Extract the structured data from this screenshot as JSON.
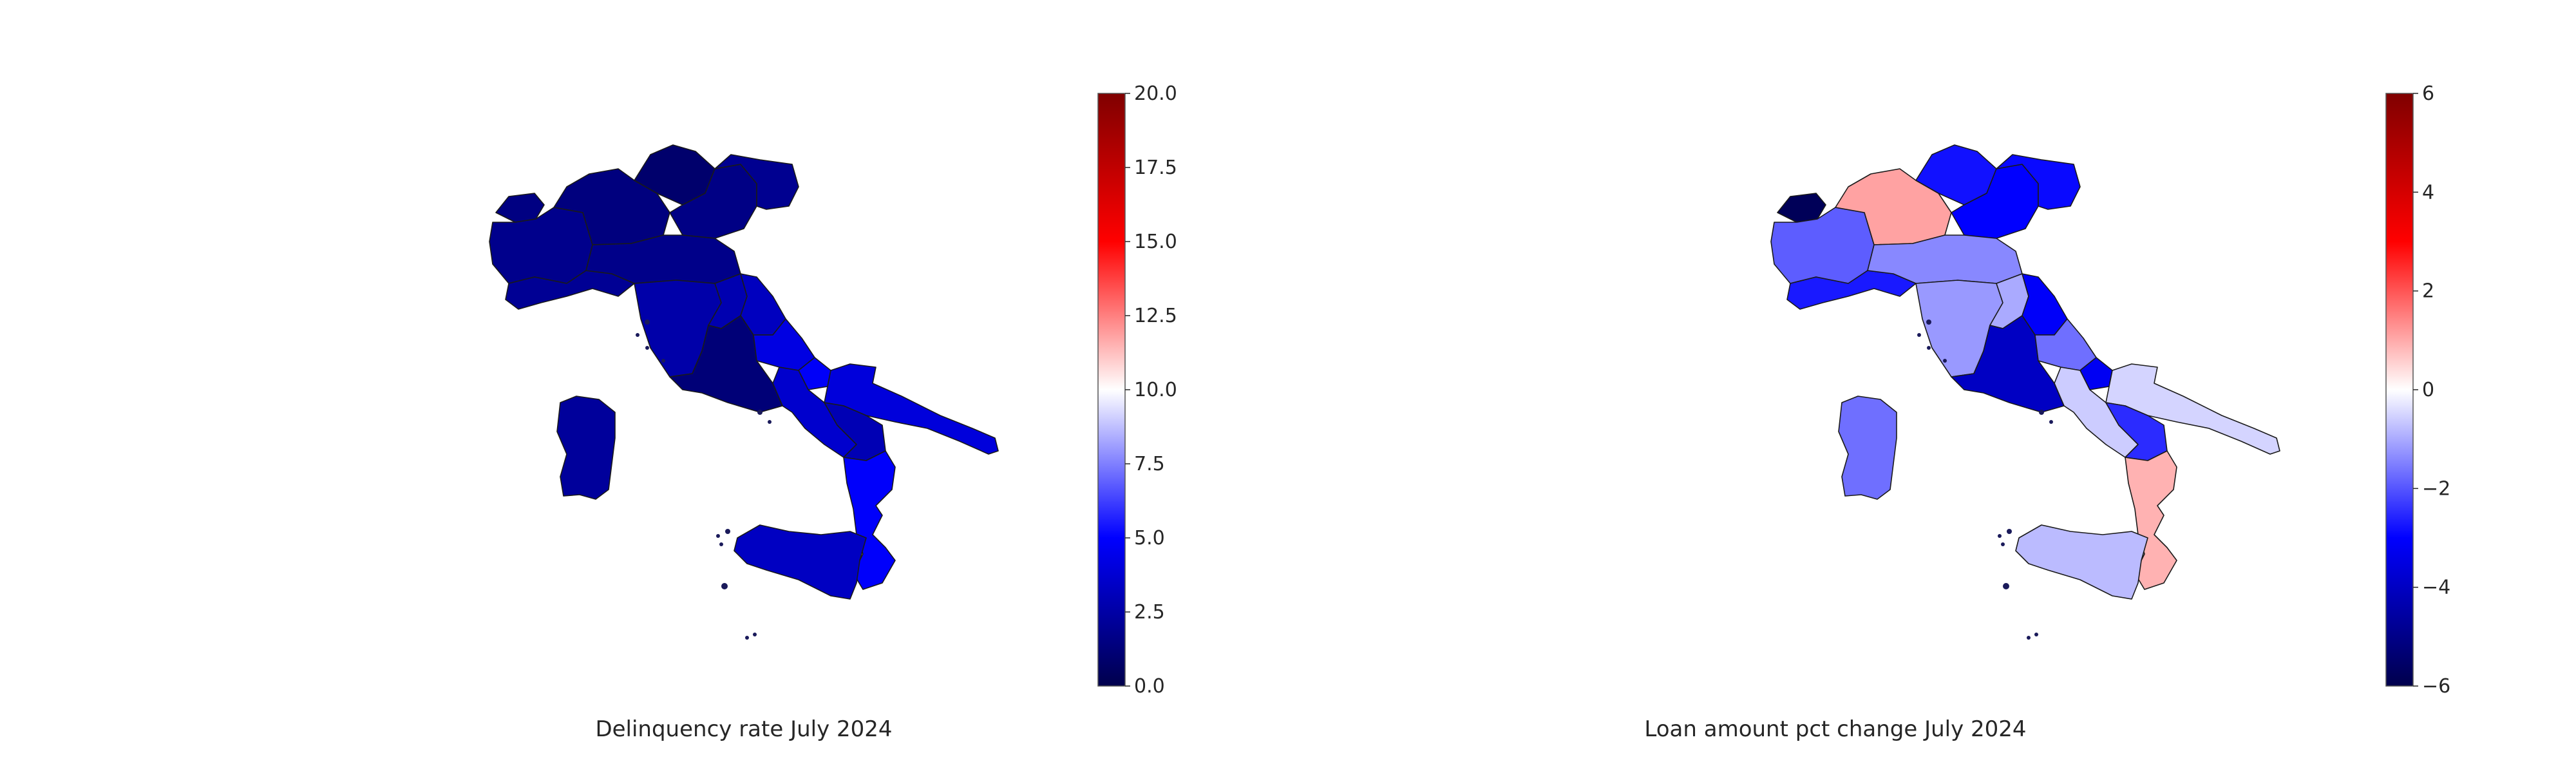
{
  "chart_data": [
    {
      "type": "choropleth",
      "title": "Delinquency rate July 2024",
      "colormap": "seismic",
      "colorbar": {
        "min": 0,
        "max": 20,
        "ticks": [
          "0.0",
          "2.5",
          "5.0",
          "7.5",
          "10.0",
          "12.5",
          "15.0",
          "17.5",
          "20.0"
        ]
      },
      "regions": [
        {
          "name": "Valle d'Aosta",
          "value": 1.5
        },
        {
          "name": "Piemonte",
          "value": 1.8
        },
        {
          "name": "Lombardia",
          "value": 1.4
        },
        {
          "name": "Trentino-Alto Adige",
          "value": 0.9
        },
        {
          "name": "Veneto",
          "value": 1.6
        },
        {
          "name": "Friuli-Venezia Giulia",
          "value": 1.9
        },
        {
          "name": "Liguria",
          "value": 2.0
        },
        {
          "name": "Emilia-Romagna",
          "value": 1.7
        },
        {
          "name": "Toscana",
          "value": 2.6
        },
        {
          "name": "Umbria",
          "value": 2.8
        },
        {
          "name": "Marche",
          "value": 3.2
        },
        {
          "name": "Lazio",
          "value": 1.2
        },
        {
          "name": "Abruzzo",
          "value": 4.2
        },
        {
          "name": "Molise",
          "value": 4.8
        },
        {
          "name": "Campania",
          "value": 3.6
        },
        {
          "name": "Puglia",
          "value": 4.0
        },
        {
          "name": "Basilicata",
          "value": 2.9
        },
        {
          "name": "Calabria",
          "value": 4.9
        },
        {
          "name": "Sicilia",
          "value": 3.3
        },
        {
          "name": "Sardegna",
          "value": 2.2
        }
      ]
    },
    {
      "type": "choropleth",
      "title": "Loan amount pct change July 2024",
      "colormap": "seismic",
      "colorbar": {
        "min": -6,
        "max": 6,
        "ticks": [
          "−6",
          "−4",
          "−2",
          "0",
          "2",
          "4",
          "6"
        ]
      },
      "regions": [
        {
          "name": "Valle d'Aosta",
          "value": -5.8
        },
        {
          "name": "Piemonte",
          "value": -1.9
        },
        {
          "name": "Lombardia",
          "value": 1.1
        },
        {
          "name": "Trentino-Alto Adige",
          "value": -2.8
        },
        {
          "name": "Veneto",
          "value": -3.0
        },
        {
          "name": "Friuli-Venezia Giulia",
          "value": -2.9
        },
        {
          "name": "Liguria",
          "value": -2.7
        },
        {
          "name": "Emilia-Romagna",
          "value": -1.4
        },
        {
          "name": "Toscana",
          "value": -1.2
        },
        {
          "name": "Umbria",
          "value": -1.0
        },
        {
          "name": "Marche",
          "value": -3.1
        },
        {
          "name": "Lazio",
          "value": -4.0
        },
        {
          "name": "Abruzzo",
          "value": -1.7
        },
        {
          "name": "Molise",
          "value": -3.2
        },
        {
          "name": "Campania",
          "value": -0.6
        },
        {
          "name": "Puglia",
          "value": -0.5
        },
        {
          "name": "Basilicata",
          "value": -2.5
        },
        {
          "name": "Calabria",
          "value": 0.9
        },
        {
          "name": "Sicilia",
          "value": -0.8
        },
        {
          "name": "Sardegna",
          "value": -1.7
        }
      ]
    }
  ]
}
